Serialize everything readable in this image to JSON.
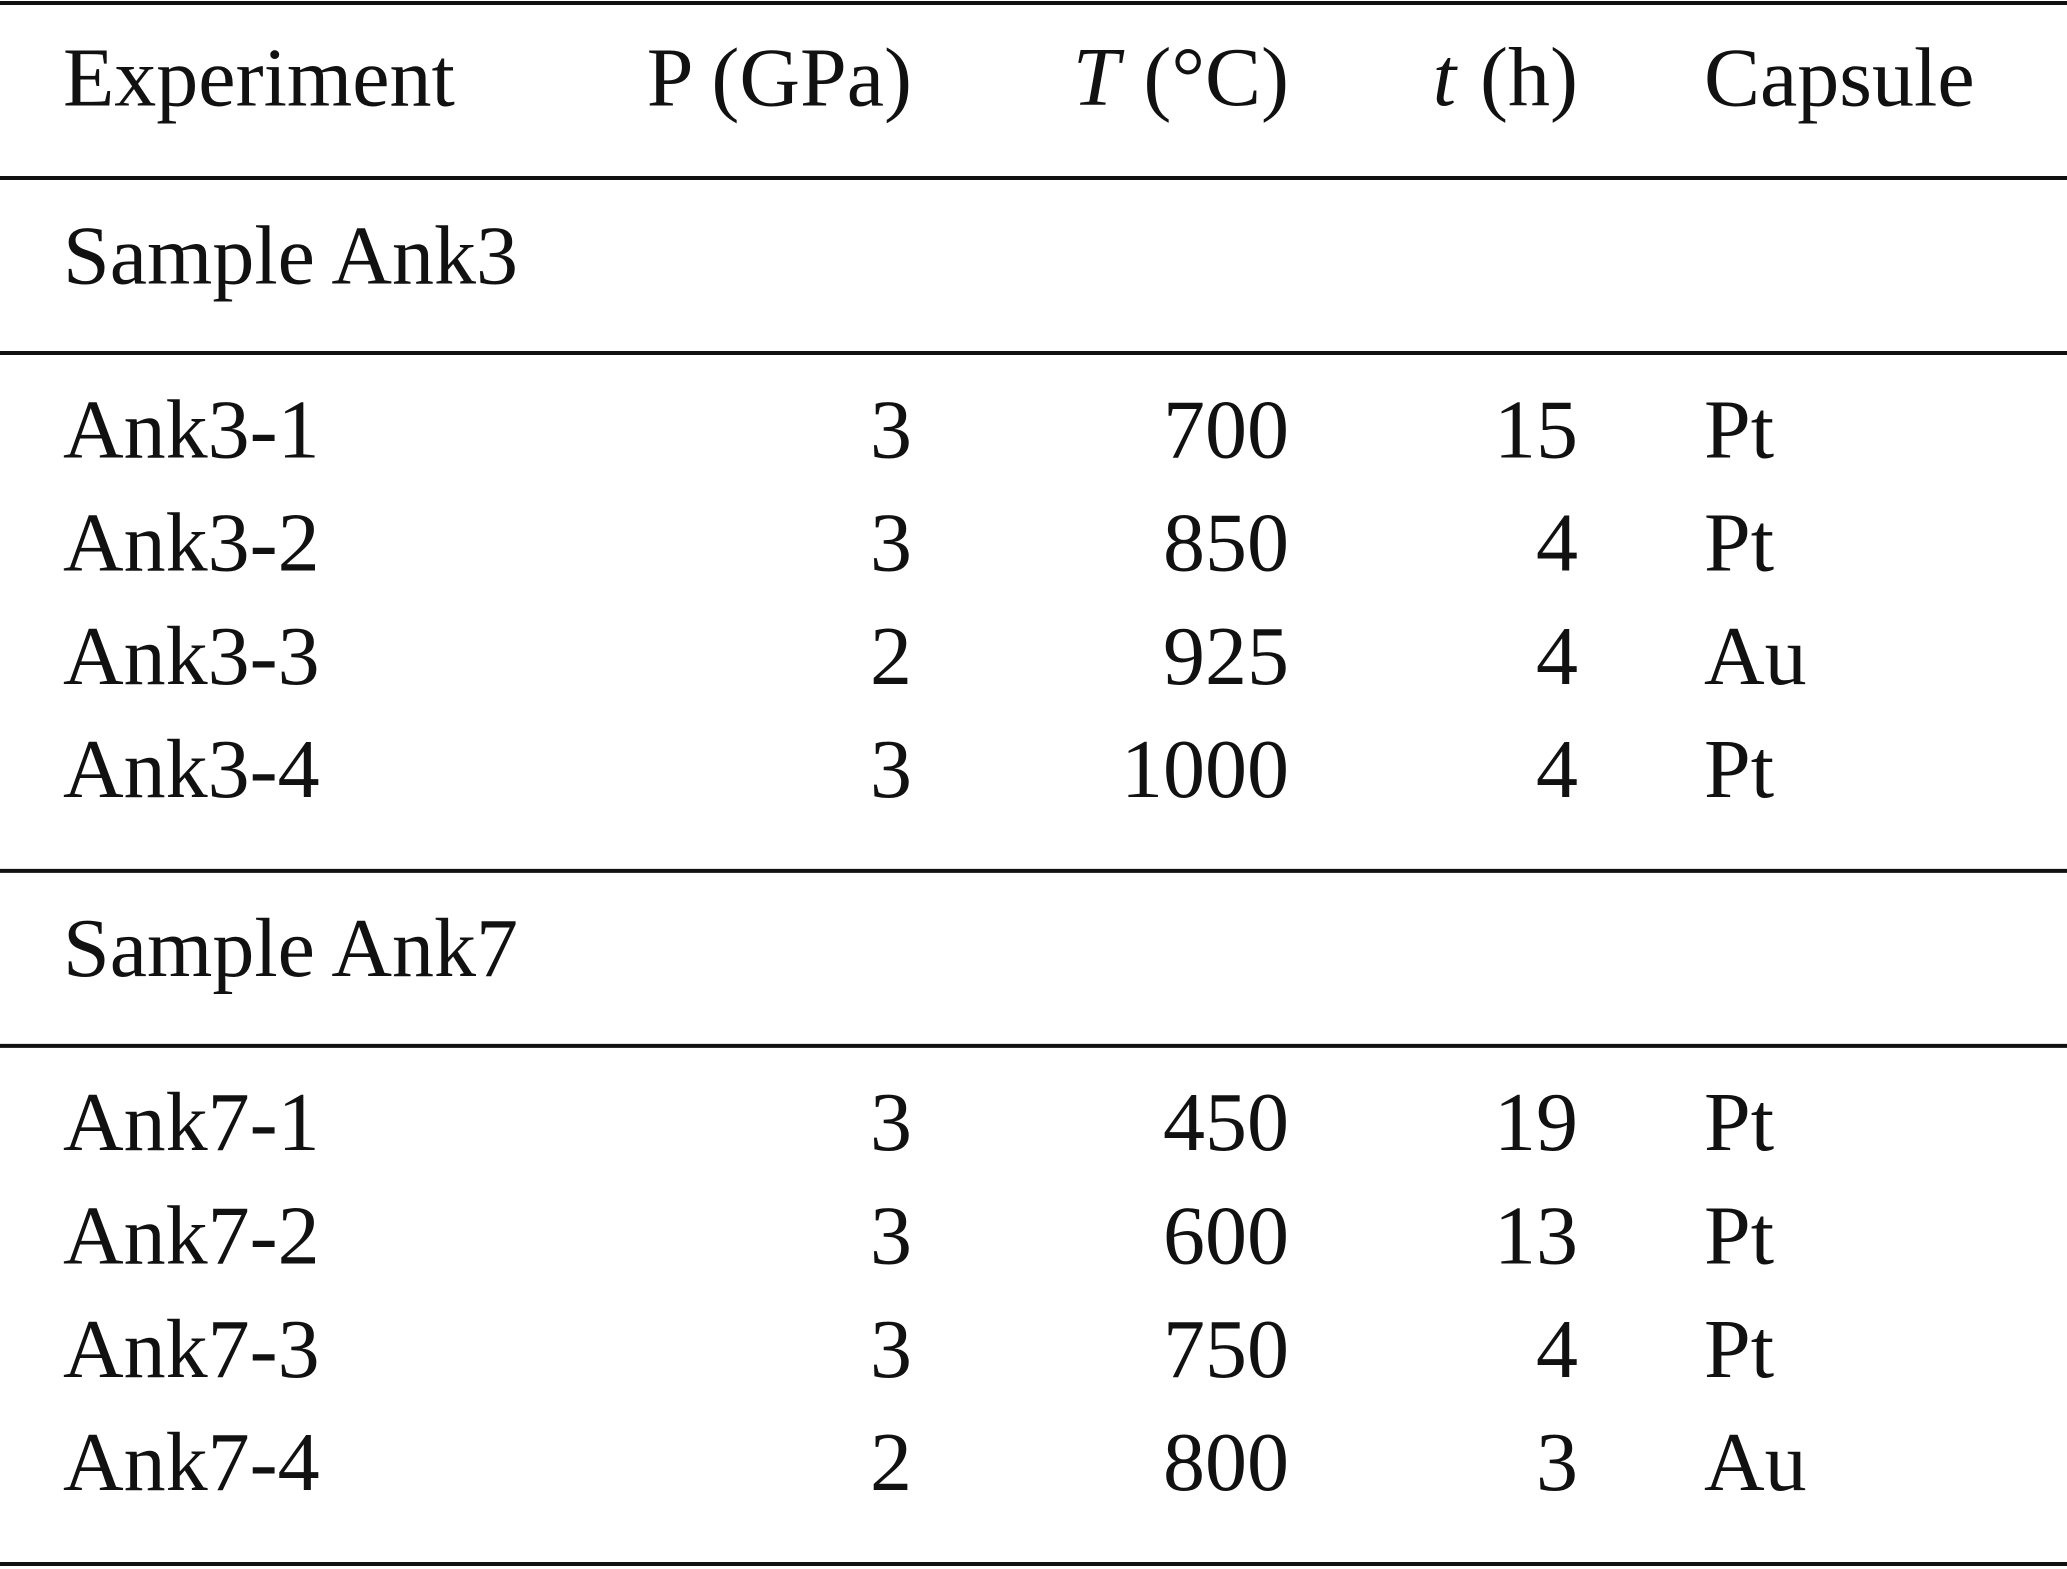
{
  "table": {
    "header": [
      "Experiment",
      "P (GPa)",
      {
        "symbol": "T",
        "unit": "(°C)"
      },
      {
        "symbol": "t",
        "unit": "(h)"
      },
      "Capsule"
    ],
    "groups": [
      {
        "title": "Sample Ank3",
        "rows": [
          [
            "Ank3-1",
            3,
            700,
            15,
            "Pt"
          ],
          [
            "Ank3-2",
            3,
            850,
            4,
            "Pt"
          ],
          [
            "Ank3-3",
            2,
            925,
            4,
            "Au"
          ],
          [
            "Ank3-4",
            3,
            1000,
            4,
            "Pt"
          ]
        ]
      },
      {
        "title": "Sample Ank7",
        "rows": [
          [
            "Ank7-1",
            3,
            450,
            19,
            "Pt"
          ],
          [
            "Ank7-2",
            3,
            600,
            13,
            "Pt"
          ],
          [
            "Ank7-3",
            3,
            750,
            4,
            "Pt"
          ],
          [
            "Ank7-4",
            2,
            800,
            3,
            "Au"
          ]
        ]
      }
    ]
  }
}
